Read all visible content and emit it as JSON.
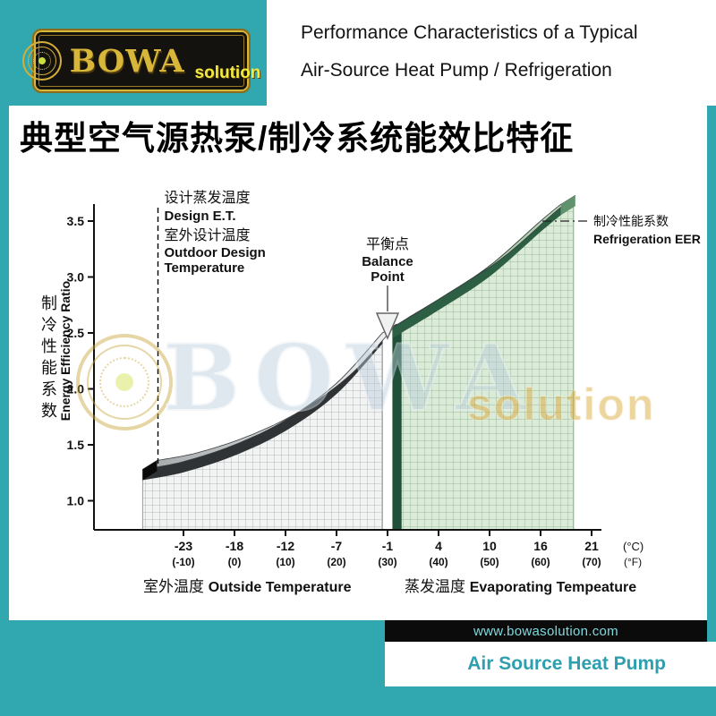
{
  "brand": {
    "logo_main": "BOWA",
    "logo_sub": "solution",
    "url": "www.bowasolution.com",
    "product_label": "Air Source Heat Pump"
  },
  "header": {
    "title_line1": "Performance Characteristics of a Typical",
    "title_line2": "Air-Source Heat Pump / Refrigeration"
  },
  "page_title": "典型空气源热泵/制冷系统能效比特征",
  "watermark": {
    "word": "BOWA",
    "sub": "solution"
  },
  "colors": {
    "teal": "#31A8B0",
    "gold": "#C9A43A",
    "ribbon_gray": "#c7c9cb",
    "ribbon_green": "#8fbc96",
    "bar_black": "#0b0b0b"
  },
  "chart_data": {
    "type": "area",
    "x_axis": {
      "ticks": [
        {
          "c": "-23",
          "f": "(-10)",
          "f_value": -10
        },
        {
          "c": "-18",
          "f": "(0)",
          "f_value": 0
        },
        {
          "c": "-12",
          "f": "(10)",
          "f_value": 10
        },
        {
          "c": "-7",
          "f": "(20)",
          "f_value": 20
        },
        {
          "c": "-1",
          "f": "(30)",
          "f_value": 30
        },
        {
          "c": "4",
          "f": "(40)",
          "f_value": 40
        },
        {
          "c": "10",
          "f": "(50)",
          "f_value": 50
        },
        {
          "c": "16",
          "f": "(60)",
          "f_value": 60
        },
        {
          "c": "21",
          "f": "(70)",
          "f_value": 70
        }
      ],
      "unit_c": "(°C)",
      "unit_f": "(°F)"
    },
    "y_axis": {
      "max": 3.5,
      "min": 1.0,
      "ticks": [
        {
          "label": "3.5",
          "value": 3.5
        },
        {
          "label": "3.0",
          "value": 3.0
        },
        {
          "label": "2.5",
          "value": 2.5
        },
        {
          "label": "2.0",
          "value": 2.0
        },
        {
          "label": "1.5",
          "value": 1.5
        },
        {
          "label": "1.0",
          "value": 1.0
        }
      ],
      "title_cn": "制冷性能系数",
      "title_en": "Energy Efficiency Ratio"
    },
    "series": [
      {
        "name": "heat-pump-eer-vs-outside-temperature",
        "color": "gray",
        "x_f": [
          -18,
          -10,
          0,
          10,
          20,
          29
        ],
        "eer": [
          1.28,
          1.35,
          1.5,
          1.72,
          2.05,
          2.5
        ]
      },
      {
        "name": "refrigeration-eer-vs-evaporating-temperature",
        "color": "green",
        "x_f": [
          31,
          40,
          50,
          60,
          64
        ],
        "eer": [
          2.55,
          2.8,
          3.1,
          3.5,
          3.65
        ]
      }
    ],
    "balance_point": {
      "x_f": 30,
      "eer": 2.5,
      "label_cn": "平衡点",
      "label_en1": "Balance",
      "label_en2": "Point"
    },
    "design_line": {
      "x_f": -15,
      "labels": [
        "设计蒸发温度",
        "Design E.T.",
        "室外设计温度",
        "Outdoor Design",
        "Temperature"
      ]
    },
    "eer_label": {
      "cn": "制冷性能系数",
      "en": "Refrigeration EER"
    },
    "captions": {
      "left_cn": "室外温度",
      "left_en": "Outside Temperature",
      "right_cn": "蒸发温度",
      "right_en": "Evaporating Tempeature"
    }
  }
}
